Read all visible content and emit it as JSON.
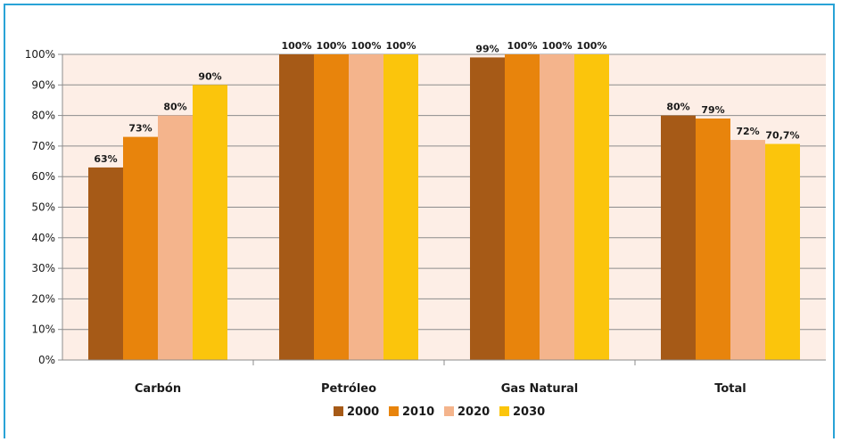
{
  "chart_data": {
    "type": "bar",
    "categories": [
      "Carbón",
      "Petróleo",
      "Gas Natural",
      "Total"
    ],
    "series": [
      {
        "name": "2000",
        "color": "#a65a17",
        "values": [
          63,
          100,
          99,
          80
        ],
        "labels": [
          "63%",
          "100%",
          "99%",
          "80%"
        ]
      },
      {
        "name": "2010",
        "color": "#e8840c",
        "values": [
          73,
          100,
          100,
          79
        ],
        "labels": [
          "73%",
          "100%",
          "100%",
          "79%"
        ]
      },
      {
        "name": "2020",
        "color": "#f4b48c",
        "values": [
          80,
          100,
          100,
          72
        ],
        "labels": [
          "80%",
          "100%",
          "100%",
          "72%"
        ]
      },
      {
        "name": "2030",
        "color": "#fbc50c",
        "values": [
          90,
          100,
          100,
          70.7
        ],
        "labels": [
          "90%",
          "100%",
          "100%",
          "70,7%"
        ]
      }
    ],
    "yticks": [
      "0%",
      "10%",
      "20%",
      "30%",
      "40%",
      "50%",
      "60%",
      "70%",
      "80%",
      "90%",
      "100%"
    ],
    "ylim": [
      0,
      100
    ],
    "grid": true,
    "legend": "bottom",
    "plot_background": "#fdeee6"
  }
}
